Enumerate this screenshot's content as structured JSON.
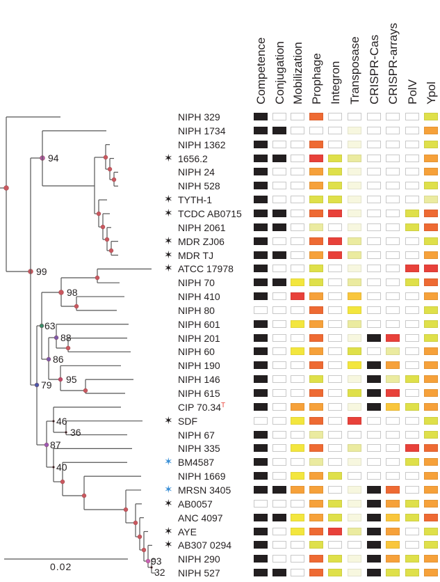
{
  "columns": [
    "Competence",
    "Conjugation",
    "Mobilization",
    "Prophage",
    "Integron",
    "Transposase",
    "CRISPR-Cas",
    "CRISPR-arrays",
    "PolV",
    "Ypol"
  ],
  "palette": {
    "K": "#231f20",
    "W": "#ffffff",
    "Y": "#dfe04a",
    "B": "#f3e63e",
    "LY": "#ebeba0",
    "VL": "#f7f7df",
    "O": "#f6a13a",
    "G": "#f9c63c",
    "DO": "#ee6a33",
    "R": "#e8413a"
  },
  "star_colors": {
    "black": "#231f20",
    "blue": "#3a8fd6"
  },
  "node_colors": {
    "red": "#c9585f",
    "magenta": "#b25ca4",
    "green": "#3a8a6a",
    "violet": "#7a5aa8",
    "blue": "#4a58a8",
    "rose": "#c04a6a",
    "purple": "#9a5ab4",
    "pink": "#c462b6",
    "black": "#231f20"
  },
  "scale_bar": {
    "label": "0.02"
  },
  "supports": [
    "94",
    "99",
    "98",
    "63",
    "88",
    "86",
    "79",
    "95",
    "46",
    "36",
    "87",
    "40",
    "93",
    "32"
  ],
  "strains": [
    {
      "name": "NIPH 329",
      "star": null,
      "cells": [
        "K",
        "W",
        "W",
        "DO",
        "W",
        "W",
        "W",
        "W",
        "W",
        "Y"
      ]
    },
    {
      "name": "NIPH 1734",
      "star": null,
      "cells": [
        "K",
        "K",
        "W",
        "W",
        "W",
        "VL",
        "W",
        "W",
        "W",
        "O"
      ]
    },
    {
      "name": "NIPH 1362",
      "star": null,
      "cells": [
        "K",
        "W",
        "W",
        "DO",
        "W",
        "VL",
        "W",
        "W",
        "W",
        "Y"
      ]
    },
    {
      "name": "1656.2",
      "star": "black",
      "cells": [
        "K",
        "K",
        "W",
        "R",
        "Y",
        "LY",
        "W",
        "W",
        "W",
        "O"
      ]
    },
    {
      "name": "NIPH 24",
      "star": null,
      "cells": [
        "K",
        "W",
        "W",
        "O",
        "Y",
        "VL",
        "W",
        "W",
        "W",
        "O"
      ]
    },
    {
      "name": "NIPH 528",
      "star": null,
      "cells": [
        "K",
        "W",
        "W",
        "O",
        "Y",
        "VL",
        "W",
        "W",
        "W",
        "Y"
      ]
    },
    {
      "name": "TYTH-1",
      "star": "black",
      "cells": [
        "K",
        "W",
        "W",
        "Y",
        "Y",
        "VL",
        "W",
        "W",
        "W",
        "LY"
      ]
    },
    {
      "name": "TCDC AB0715",
      "star": "black",
      "cells": [
        "K",
        "K",
        "W",
        "DO",
        "R",
        "VL",
        "W",
        "W",
        "Y",
        "DO"
      ]
    },
    {
      "name": "NIPH 2061",
      "star": null,
      "cells": [
        "K",
        "K",
        "W",
        "LY",
        "W",
        "VL",
        "W",
        "W",
        "Y",
        "DO"
      ]
    },
    {
      "name": "MDR ZJ06",
      "star": "black",
      "cells": [
        "K",
        "W",
        "W",
        "DO",
        "R",
        "LY",
        "W",
        "W",
        "W",
        "Y"
      ]
    },
    {
      "name": "MDR TJ",
      "star": "black",
      "cells": [
        "K",
        "K",
        "W",
        "O",
        "R",
        "LY",
        "W",
        "W",
        "W",
        "O"
      ]
    },
    {
      "name": "ATCC 17978",
      "star": "black",
      "cells": [
        "K",
        "W",
        "W",
        "Y",
        "W",
        "VL",
        "W",
        "W",
        "R",
        "R"
      ]
    },
    {
      "name": "NIPH 70",
      "star": null,
      "cells": [
        "K",
        "K",
        "B",
        "Y",
        "W",
        "LY",
        "W",
        "W",
        "Y",
        "DO"
      ]
    },
    {
      "name": "NIPH 410",
      "star": null,
      "cells": [
        "K",
        "W",
        "R",
        "O",
        "W",
        "G",
        "W",
        "W",
        "W",
        "O"
      ]
    },
    {
      "name": "NIPH 80",
      "star": null,
      "cells": [
        "W",
        "W",
        "W",
        "DO",
        "W",
        "B",
        "W",
        "W",
        "W",
        "Y"
      ]
    },
    {
      "name": "NIPH 601",
      "star": null,
      "cells": [
        "K",
        "W",
        "B",
        "O",
        "W",
        "LY",
        "W",
        "W",
        "W",
        "Y"
      ]
    },
    {
      "name": "NIPH 201",
      "star": null,
      "cells": [
        "K",
        "W",
        "W",
        "DO",
        "W",
        "VL",
        "K",
        "R",
        "W",
        "Y"
      ]
    },
    {
      "name": "NIPH 60",
      "star": null,
      "cells": [
        "K",
        "W",
        "B",
        "O",
        "W",
        "Y",
        "W",
        "LY",
        "W",
        "O"
      ]
    },
    {
      "name": "NIPH 190",
      "star": null,
      "cells": [
        "K",
        "W",
        "W",
        "DO",
        "W",
        "B",
        "K",
        "O",
        "W",
        "O"
      ]
    },
    {
      "name": "NIPH 146",
      "star": null,
      "cells": [
        "K",
        "W",
        "W",
        "Y",
        "W",
        "VL",
        "K",
        "LY",
        "Y",
        "O"
      ]
    },
    {
      "name": "NIPH 615",
      "star": null,
      "cells": [
        "K",
        "W",
        "W",
        "DO",
        "W",
        "Y",
        "K",
        "R",
        "W",
        "O"
      ]
    },
    {
      "name": "CIP 70.34",
      "sup": "T",
      "star": null,
      "cells": [
        "K",
        "W",
        "O",
        "O",
        "W",
        "VL",
        "K",
        "G",
        "Y",
        "O"
      ]
    },
    {
      "name": "SDF",
      "star": "black",
      "cells": [
        "W",
        "W",
        "B",
        "DO",
        "W",
        "R",
        "W",
        "W",
        "W",
        "Y"
      ]
    },
    {
      "name": "NIPH 67",
      "star": null,
      "cells": [
        "K",
        "W",
        "W",
        "LY",
        "W",
        "W",
        "W",
        "W",
        "W",
        "Y"
      ]
    },
    {
      "name": "NIPH 335",
      "star": null,
      "cells": [
        "K",
        "W",
        "B",
        "DO",
        "W",
        "LY",
        "W",
        "W",
        "R",
        "DO"
      ]
    },
    {
      "name": "BM4587",
      "star": "blue",
      "cells": [
        "K",
        "W",
        "W",
        "LY",
        "W",
        "VL",
        "W",
        "W",
        "Y",
        "O"
      ]
    },
    {
      "name": "NIPH 1669",
      "star": null,
      "cells": [
        "K",
        "W",
        "B",
        "O",
        "Y",
        "W",
        "W",
        "W",
        "W",
        "O"
      ]
    },
    {
      "name": "MRSN 3405",
      "star": "blue",
      "cells": [
        "K",
        "K",
        "O",
        "O",
        "W",
        "VL",
        "K",
        "DO",
        "W",
        "O"
      ]
    },
    {
      "name": "AB0057",
      "star": "black",
      "cells": [
        "W",
        "W",
        "W",
        "O",
        "Y",
        "VL",
        "K",
        "O",
        "Y",
        "O"
      ]
    },
    {
      "name": "ANC 4097",
      "star": null,
      "cells": [
        "K",
        "K",
        "B",
        "O",
        "Y",
        "VL",
        "K",
        "G",
        "Y",
        "DO"
      ]
    },
    {
      "name": "AYE",
      "star": "black",
      "cells": [
        "K",
        "W",
        "B",
        "DO",
        "R",
        "LY",
        "K",
        "O",
        "W",
        "Y"
      ]
    },
    {
      "name": "AB307 0294",
      "star": "black",
      "cells": [
        "K",
        "W",
        "W",
        "Y",
        "W",
        "W",
        "K",
        "G",
        "W",
        "Y"
      ]
    },
    {
      "name": "NIPH 290",
      "star": null,
      "cells": [
        "K",
        "W",
        "W",
        "DO",
        "Y",
        "VL",
        "K",
        "O",
        "Y",
        "O"
      ]
    },
    {
      "name": "NIPH 527",
      "star": null,
      "cells": [
        "K",
        "K",
        "W",
        "DO",
        "Y",
        "VL",
        "K",
        "Y",
        "Y",
        "O"
      ]
    }
  ]
}
